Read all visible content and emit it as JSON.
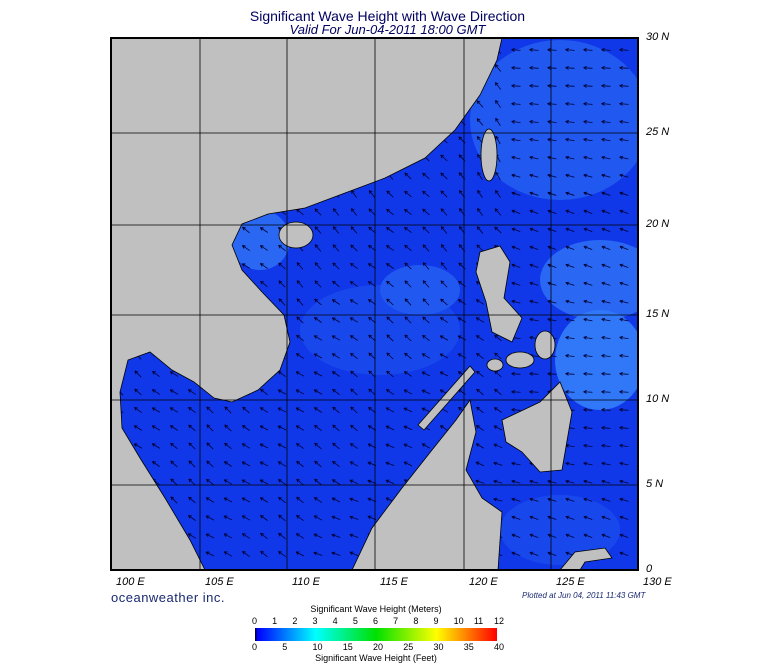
{
  "title": "Significant Wave Height with Wave Direction",
  "subtitle": "Valid For Jun-04-2011 18:00 GMT",
  "lat_labels": [
    "30 N",
    "25 N",
    "20 N",
    "15 N",
    "10 N",
    "5 N",
    "0"
  ],
  "lon_labels": [
    "100 E",
    "105 E",
    "110 E",
    "115 E",
    "120 E",
    "125 E",
    "130 E"
  ],
  "brand": "oceanweather inc.",
  "plotted": "Plotted at Jun 04, 2011 11:43 GMT",
  "colorbar": {
    "title_meters": "Significant Wave Height (Meters)",
    "title_feet": "Significant Wave Height (Feet)",
    "meters_ticks": [
      "0",
      "1",
      "2",
      "3",
      "4",
      "5",
      "6",
      "7",
      "8",
      "9",
      "10",
      "11",
      "12"
    ],
    "feet_ticks": [
      "0",
      "5",
      "10",
      "15",
      "20",
      "25",
      "30",
      "35",
      "40"
    ],
    "colors": [
      "#000000",
      "#0000ff",
      "#00a0ff",
      "#00ffff",
      "#00ff80",
      "#00e000",
      "#80ff00",
      "#ffff00",
      "#ffa000",
      "#ff0000"
    ]
  },
  "colors": {
    "land": "#c0c0c0",
    "sea_low": "#1038e8",
    "sea_mid": "#2058f0",
    "sea_high": "#3078f8"
  }
}
